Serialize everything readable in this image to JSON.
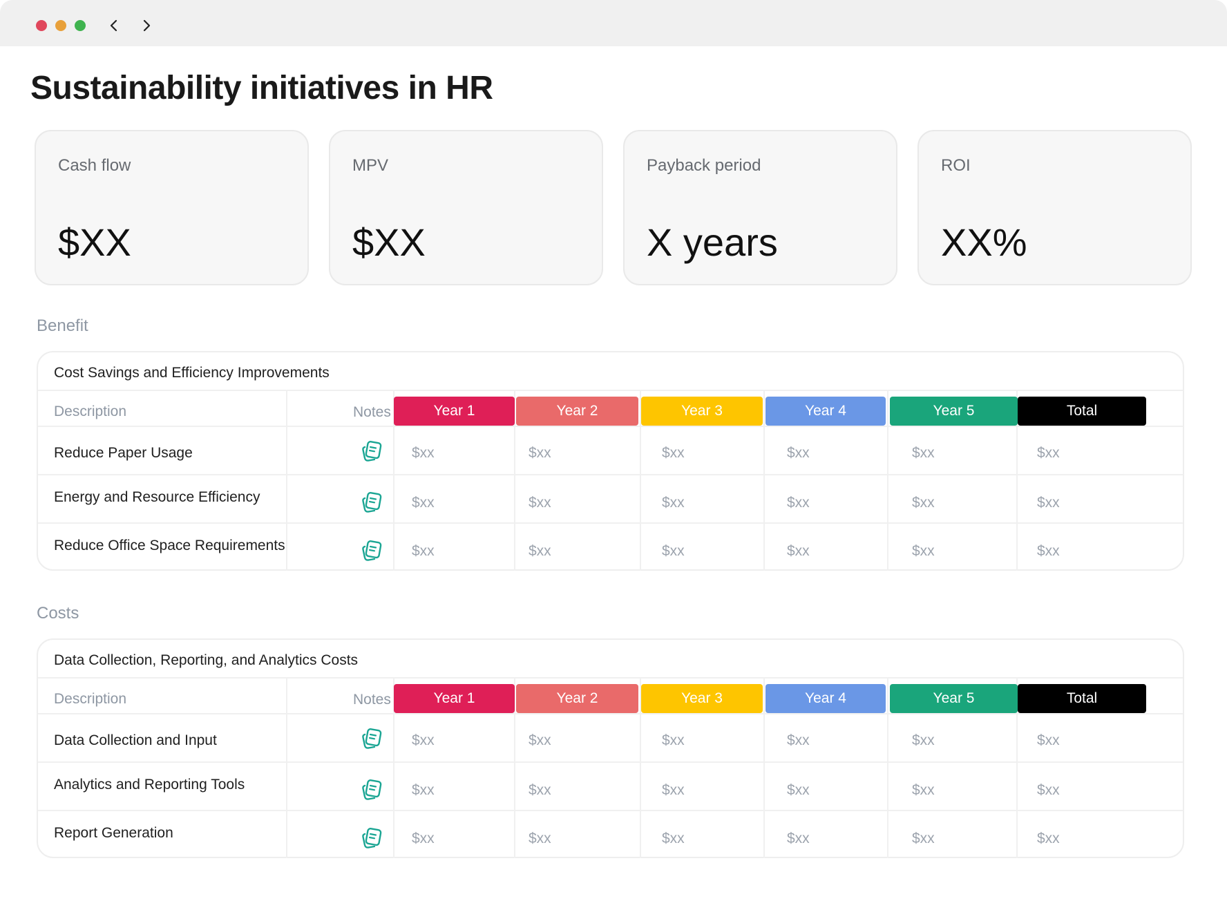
{
  "window": {
    "controls": [
      "close",
      "minimize",
      "maximize"
    ],
    "nav_icons": [
      "chevron-left-icon",
      "chevron-right-icon"
    ]
  },
  "page": {
    "title": "Sustainability initiatives in HR"
  },
  "kpis": [
    {
      "label": "Cash flow",
      "value": "$XX"
    },
    {
      "label": "MPV",
      "value": "$XX"
    },
    {
      "label": "Payback period",
      "value": "X years"
    },
    {
      "label": "ROI",
      "value": "XX%"
    }
  ],
  "columns": {
    "description": "Description",
    "notes": "Notes",
    "years": [
      {
        "label": "Year 1",
        "color": "#df1f57"
      },
      {
        "label": "Year 2",
        "color": "#e96a6a"
      },
      {
        "label": "Year 3",
        "color": "#fec500"
      },
      {
        "label": "Year 4",
        "color": "#6a97e6"
      },
      {
        "label": "Year 5",
        "color": "#1aa57b"
      },
      {
        "label": "Total",
        "color": "#000000"
      }
    ]
  },
  "sections": [
    {
      "label": "Benefit",
      "panel_title": "Cost Savings and Efficiency Improvements",
      "rows": [
        {
          "description": "Reduce Paper Usage",
          "note_icon": "note-icon",
          "values": [
            "$xx",
            "$xx",
            "$xx",
            "$xx",
            "$xx",
            "$xx"
          ]
        },
        {
          "description": "Energy and Resource Efficiency",
          "note_icon": "note-icon",
          "values": [
            "$xx",
            "$xx",
            "$xx",
            "$xx",
            "$xx",
            "$xx"
          ]
        },
        {
          "description": "Reduce Office Space Requirements",
          "note_icon": "note-icon",
          "values": [
            "$xx",
            "$xx",
            "$xx",
            "$xx",
            "$xx",
            "$xx"
          ]
        }
      ]
    },
    {
      "label": "Costs",
      "panel_title": "Data Collection, Reporting, and Analytics Costs",
      "rows": [
        {
          "description": "Data Collection and Input",
          "note_icon": "note-icon",
          "values": [
            "$xx",
            "$xx",
            "$xx",
            "$xx",
            "$xx",
            "$xx"
          ]
        },
        {
          "description": "Analytics and Reporting Tools",
          "note_icon": "note-icon",
          "values": [
            "$xx",
            "$xx",
            "$xx",
            "$xx",
            "$xx",
            "$xx"
          ]
        },
        {
          "description": "Report Generation",
          "note_icon": "note-icon",
          "values": [
            "$xx",
            "$xx",
            "$xx",
            "$xx",
            "$xx",
            "$xx"
          ]
        }
      ]
    }
  ]
}
